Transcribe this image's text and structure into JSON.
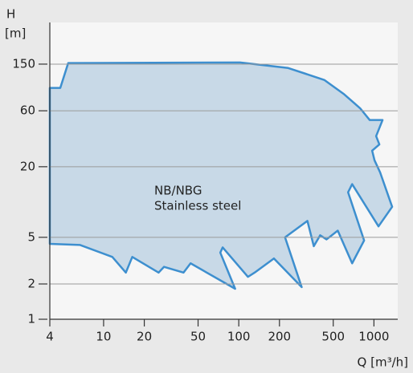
{
  "chart_data": {
    "type": "area",
    "x_label": "Q [m³/h]",
    "y_label": [
      "H",
      "[m]"
    ],
    "annotation": [
      "NB/NBG",
      "Stainless steel"
    ],
    "x": [
      4,
      4.78,
      5.47,
      102,
      232,
      429,
      602,
      791,
      931,
      1158,
      1038,
      1097,
      970,
      1010,
      1111,
      1364,
      1081,
      690,
      644,
      846,
      690,
      540,
      446,
      400,
      359,
      322,
      220,
      292,
      182,
      131,
      117,
      76,
      73,
      94,
      44,
      39,
      28,
      25.5,
      16.3,
      14.6,
      11.6,
      6.7,
      4
    ],
    "values": [
      94,
      94,
      153,
      155,
      139,
      110,
      83,
      63,
      50,
      50,
      36.5,
      31,
      27.4,
      22.7,
      17.9,
      9.1,
      6.2,
      14.2,
      12.1,
      4.7,
      3.0,
      5.7,
      4.8,
      5.2,
      4.2,
      6.9,
      5.0,
      1.88,
      3.3,
      2.5,
      2.3,
      4.1,
      3.7,
      1.82,
      3.0,
      2.5,
      2.8,
      2.5,
      3.4,
      2.5,
      3.4,
      4.3,
      4.4
    ],
    "color": "#3d8fcf",
    "fill": "#c8d9e7",
    "xlim": [
      4,
      1500
    ],
    "ylim": [
      1,
      340
    ],
    "log_x": true,
    "log_y": true,
    "grid": true,
    "xticks": [
      4,
      10,
      20,
      50,
      100,
      200,
      500,
      1000
    ],
    "yticks": [
      1,
      2,
      5,
      20,
      60,
      150
    ]
  }
}
